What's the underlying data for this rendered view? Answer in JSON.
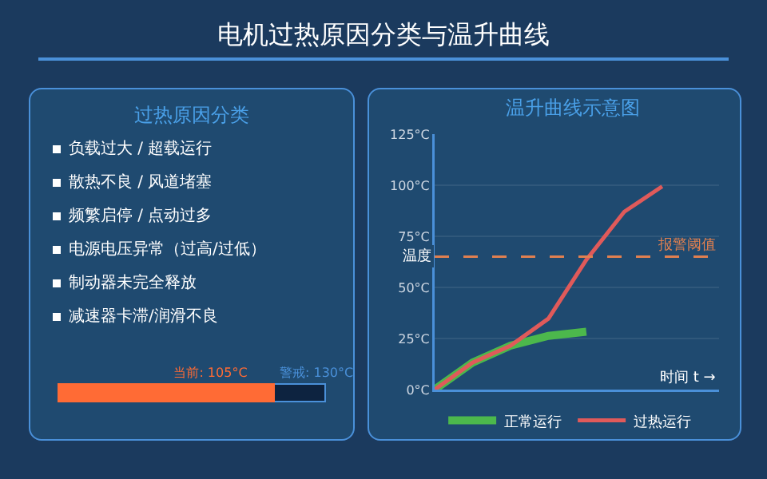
{
  "chart_data": [
    {
      "type": "other",
      "title": "电机过热原因分类与温升曲线"
    },
    {
      "type": "other",
      "title": "过热原因分类",
      "annotations": [
        "负载过大 / 超载运行",
        "散热不良 / 风道堵塞",
        "频繁启停 / 点动过多",
        "电源电压异常（过高/过低）",
        "制动器未完全释放",
        "减速器卡滞/润滑不良"
      ],
      "values": [
        105,
        130
      ],
      "value_labels": [
        "当前: 105°C",
        "警戒: 130°C"
      ],
      "colors": [
        "#ff6b35",
        "#4a90d9"
      ]
    },
    {
      "type": "line",
      "title": "温升曲线示意图",
      "xlabel": "时间 t →",
      "ylabel": "温度",
      "categories": [
        null,
        null,
        null,
        null,
        null,
        null,
        null
      ],
      "series": [
        {
          "name": "正常运行",
          "color": "#4cb84c",
          "values": [
            0,
            13.2,
            21.5,
            26.3,
            28.3,
            null,
            null
          ]
        },
        {
          "name": "过热运行",
          "color": "#e05a5a",
          "values": [
            0,
            13.2,
            21.5,
            34.7,
            63.5,
            87,
            99.4
          ]
        }
      ],
      "ylim": [
        0,
        125
      ],
      "yticks": [
        {
          "value": 0,
          "label": "0°C"
        },
        {
          "value": 25,
          "label": "25°C"
        },
        {
          "value": 50,
          "label": "50°C"
        },
        {
          "value": 75,
          "label": "75°C"
        },
        {
          "value": 100,
          "label": "100°C"
        },
        {
          "value": 125,
          "label": "125°C"
        }
      ],
      "ref_lines": [
        {
          "axis": "y",
          "value": 65,
          "label": "报警阈值",
          "color": "#e08050",
          "line_style": "dashed"
        }
      ],
      "grid": "y",
      "legend": "bottom left",
      "marker": "none",
      "line_style": "solid"
    }
  ]
}
